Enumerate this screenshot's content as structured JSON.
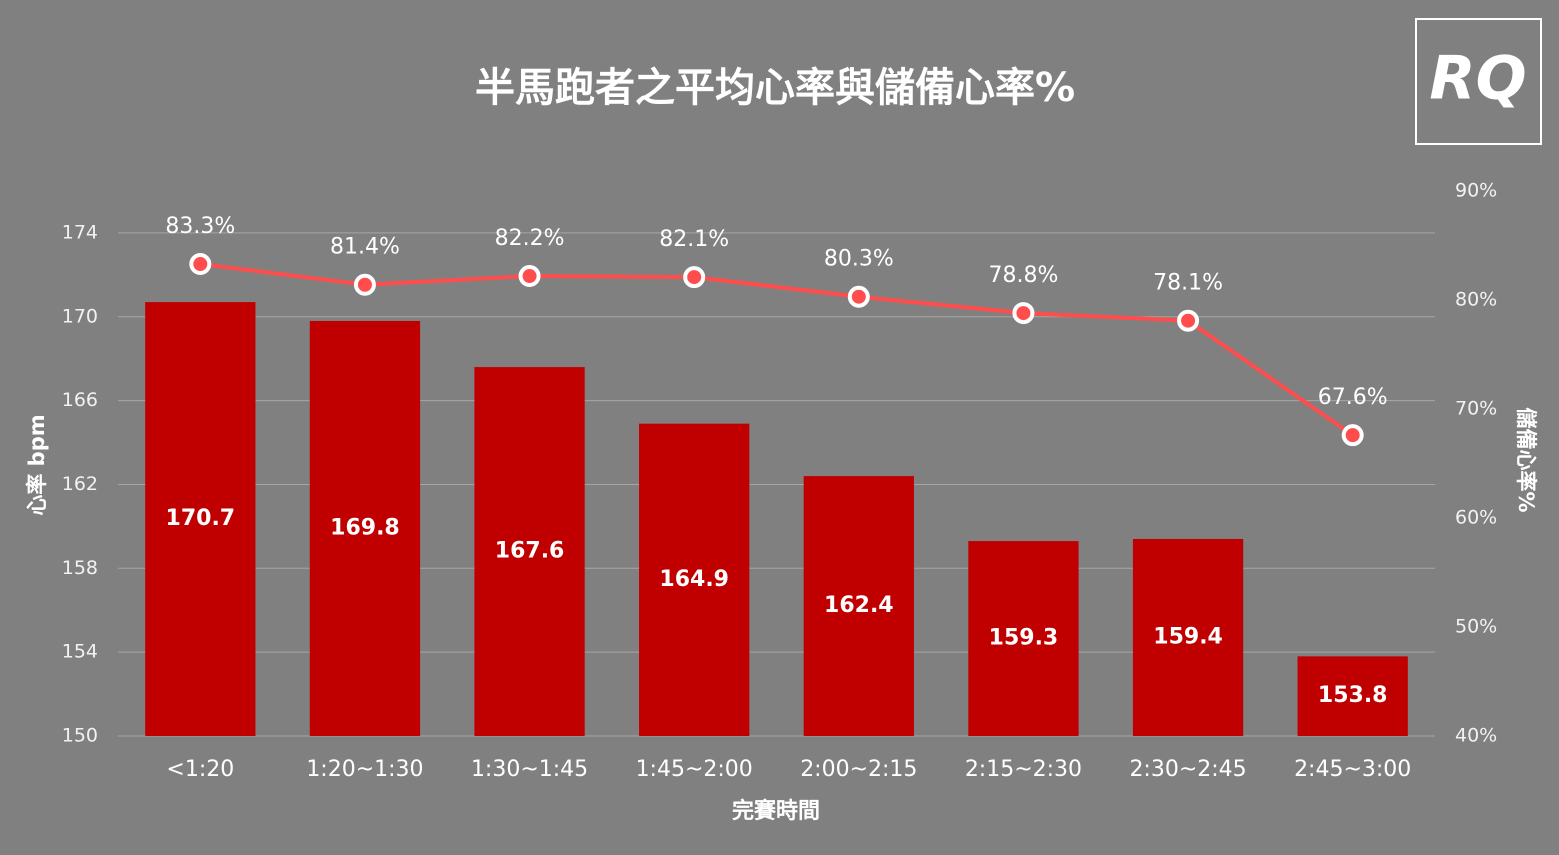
{
  "logo": "RQ",
  "chart_data": {
    "type": "bar",
    "title": "半馬跑者之平均心率與儲備心率%",
    "x_label": "完賽時間",
    "y_label": "心率 bpm",
    "y2_label": "儲備心率%",
    "categories": [
      "<1:20",
      "1:20~1:30",
      "1:30~1:45",
      "1:45~2:00",
      "2:00~2:15",
      "2:15~2:30",
      "2:30~2:45",
      "2:45~3:00"
    ],
    "ylim": [
      150,
      176
    ],
    "yticks": [
      150,
      154,
      158,
      162,
      166,
      170,
      174
    ],
    "y2lim": [
      40,
      90
    ],
    "y2ticks": [
      {
        "value": 40,
        "label": "40%"
      },
      {
        "value": 50,
        "label": "50%"
      },
      {
        "value": 60,
        "label": "60%"
      },
      {
        "value": 70,
        "label": "70%"
      },
      {
        "value": 80,
        "label": "80%"
      },
      {
        "value": 90,
        "label": "90%"
      }
    ],
    "grid": true,
    "series": [
      {
        "name": "心率 bpm",
        "type": "bar",
        "color": "#c00000",
        "values": [
          170.7,
          169.8,
          167.6,
          164.9,
          162.4,
          159.3,
          159.4,
          153.8
        ]
      },
      {
        "name": "儲備心率%",
        "type": "line",
        "axis": "y2",
        "color": "#ff4d4d",
        "values": [
          83.3,
          81.4,
          82.2,
          82.1,
          80.3,
          78.8,
          78.1,
          67.6
        ],
        "value_labels": [
          "83.3%",
          "81.4%",
          "82.2%",
          "82.1%",
          "80.3%",
          "78.8%",
          "78.1%",
          "67.6%"
        ]
      }
    ]
  }
}
